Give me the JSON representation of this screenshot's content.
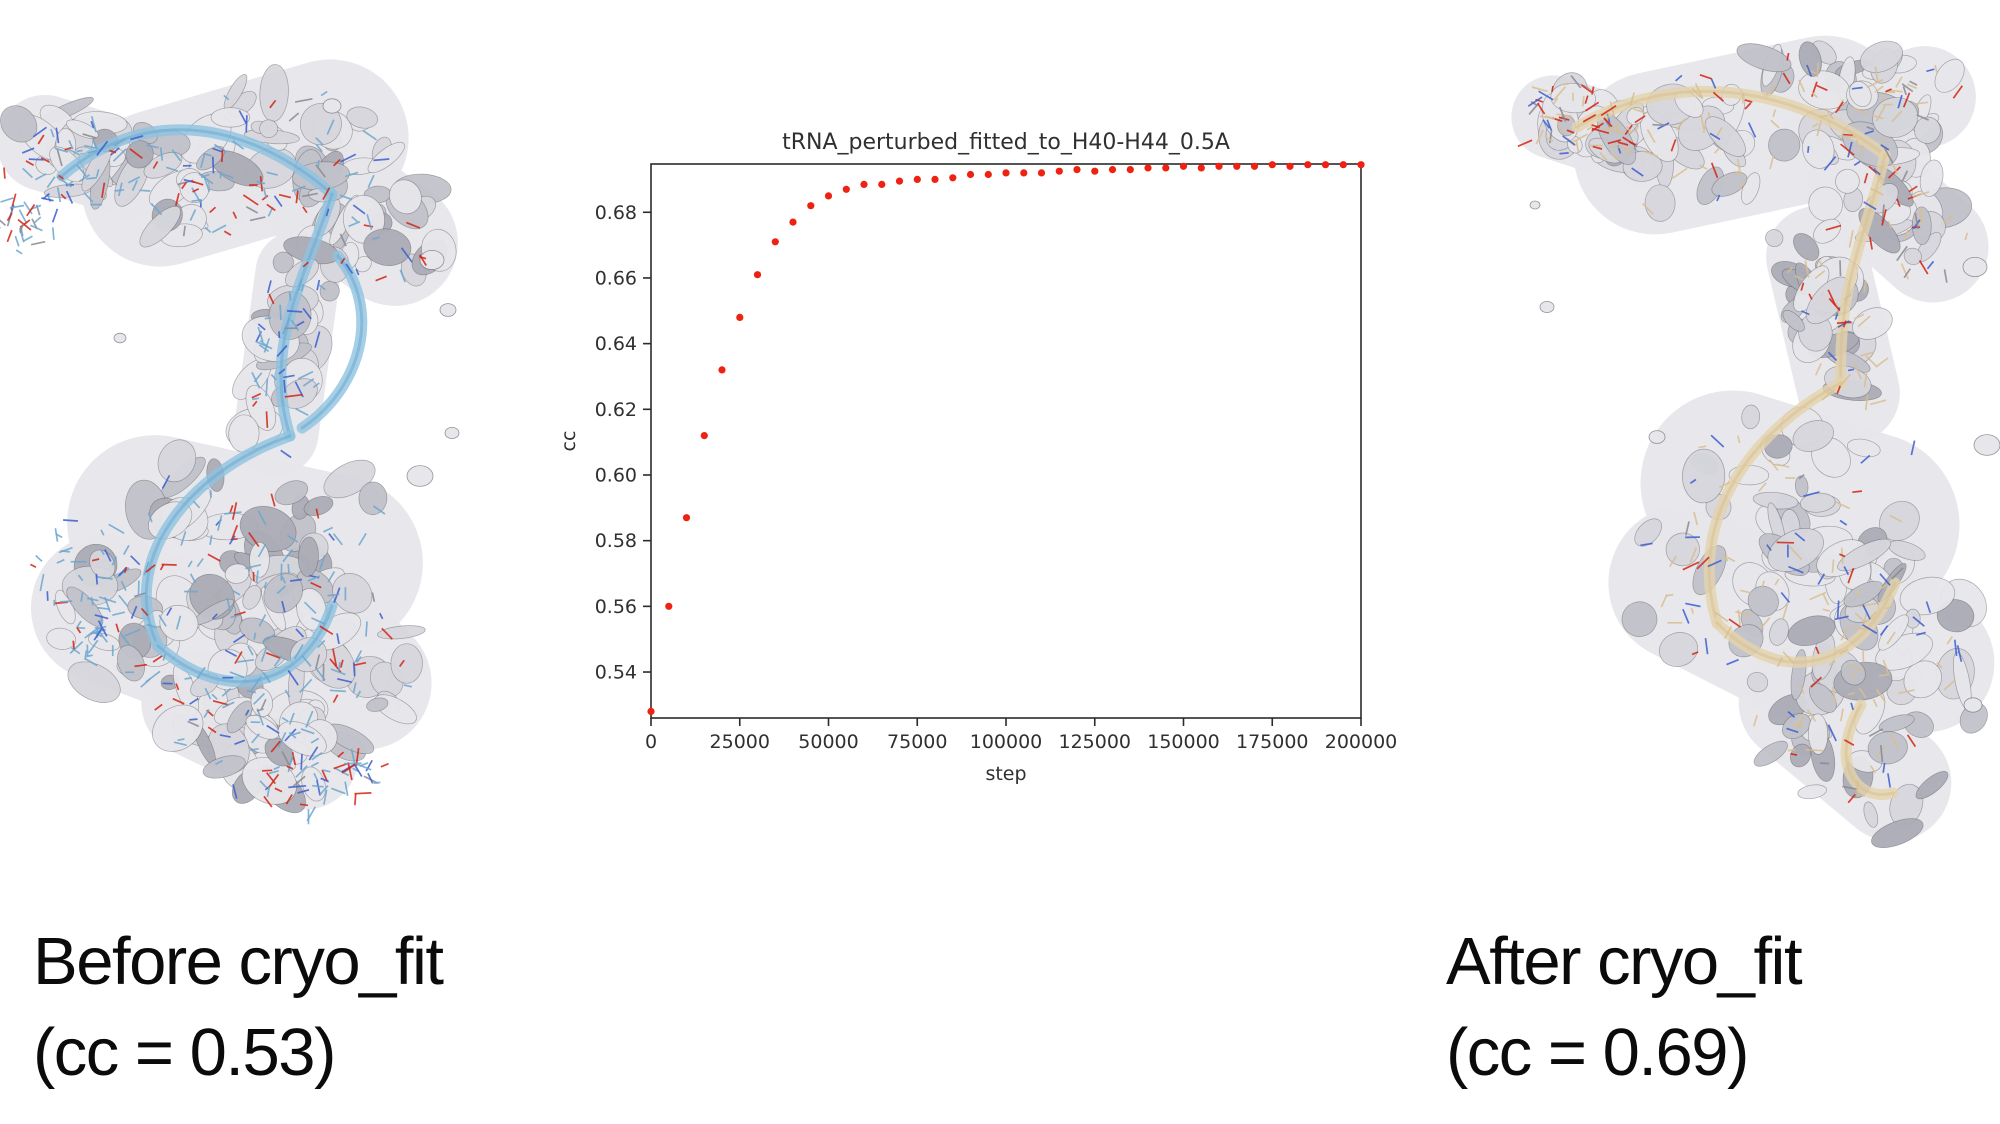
{
  "figure": {
    "background": "#ffffff"
  },
  "before": {
    "caption_line1": "Before cryo_fit",
    "caption_line2": "(cc = 0.53)",
    "model_color": "#6ea7cf",
    "ribbon_color": "#8fc3e0",
    "atom_red": "#d42313",
    "atom_blue": "#3c5fd0",
    "density_fill": "#e7e7eb",
    "density_shade": "#c2c2cb",
    "density_stroke": "#55555c"
  },
  "after": {
    "caption_line1": "After cryo_fit",
    "caption_line2": "(cc = 0.69)",
    "model_color": "#d8bf92",
    "ribbon_color": "#e4d3ac",
    "atom_red": "#d42313",
    "atom_blue": "#3c5fd0",
    "density_fill": "#e7e7eb",
    "density_shade": "#c2c2cb",
    "density_stroke": "#55555c"
  },
  "chart_data": {
    "type": "scatter",
    "title": "tRNA_perturbed_fitted_to_H40-H44_0.5A",
    "xlabel": "step",
    "ylabel": "cc",
    "marker_color": "#ee2213",
    "frame_color": "#2b2b2b",
    "text_color": "#303030",
    "grid": false,
    "legend": "none",
    "xlim": [
      0,
      200000
    ],
    "ylim": [
      0.526,
      0.6947
    ],
    "xticks": [
      0,
      25000,
      50000,
      75000,
      100000,
      125000,
      150000,
      175000,
      200000
    ],
    "yticks": [
      0.54,
      0.56,
      0.58,
      0.6,
      0.62,
      0.64,
      0.66,
      0.68
    ],
    "x": [
      0,
      5000,
      10000,
      15000,
      20000,
      25000,
      30000,
      35000,
      40000,
      45000,
      50000,
      55000,
      60000,
      65000,
      70000,
      75000,
      80000,
      85000,
      90000,
      95000,
      100000,
      105000,
      110000,
      115000,
      120000,
      125000,
      130000,
      135000,
      140000,
      145000,
      150000,
      155000,
      160000,
      165000,
      170000,
      175000,
      180000,
      185000,
      190000,
      195000,
      200000
    ],
    "y": [
      0.528,
      0.56,
      0.587,
      0.612,
      0.632,
      0.648,
      0.661,
      0.671,
      0.677,
      0.682,
      0.685,
      0.687,
      0.6885,
      0.6885,
      0.6895,
      0.69,
      0.69,
      0.6905,
      0.6915,
      0.6915,
      0.692,
      0.692,
      0.692,
      0.6925,
      0.693,
      0.6925,
      0.693,
      0.693,
      0.6935,
      0.6935,
      0.694,
      0.6935,
      0.694,
      0.694,
      0.694,
      0.6945,
      0.694,
      0.6945,
      0.6945,
      0.6945,
      0.6945
    ]
  }
}
